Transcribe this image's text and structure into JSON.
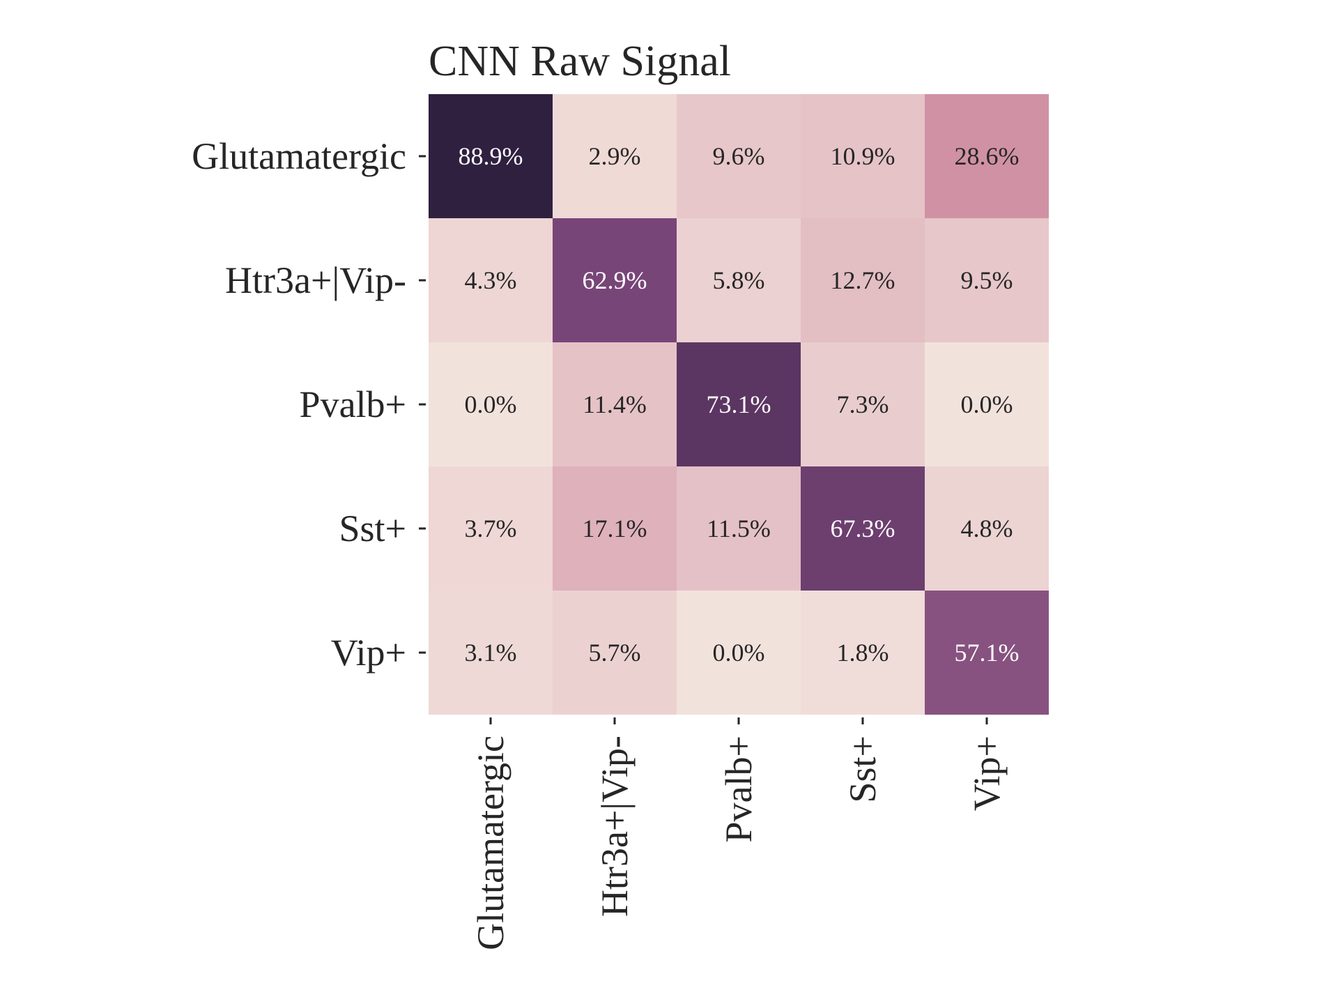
{
  "chart_data": {
    "type": "heatmap",
    "title": "CNN Raw Signal",
    "xlabel": "",
    "ylabel": "",
    "rows": [
      "Glutamatergic",
      "Htr3a+|Vip-",
      "Pvalb+",
      "Sst+",
      "Vip+"
    ],
    "cols": [
      "Glutamatergic",
      "Htr3a+|Vip-",
      "Pvalb+",
      "Sst+",
      "Vip+"
    ],
    "values": [
      [
        88.9,
        2.9,
        9.6,
        10.9,
        28.6
      ],
      [
        4.3,
        62.9,
        5.8,
        12.7,
        9.5
      ],
      [
        0.0,
        11.4,
        73.1,
        7.3,
        0.0
      ],
      [
        3.7,
        17.1,
        11.5,
        67.3,
        4.8
      ],
      [
        3.1,
        5.7,
        0.0,
        1.8,
        57.1
      ]
    ],
    "labels": [
      [
        "88.9%",
        "2.9%",
        "9.6%",
        "10.9%",
        "28.6%"
      ],
      [
        "4.3%",
        "62.9%",
        "5.8%",
        "12.7%",
        "9.5%"
      ],
      [
        "0.0%",
        "11.4%",
        "73.1%",
        "7.3%",
        "0.0%"
      ],
      [
        "3.7%",
        "17.1%",
        "11.5%",
        "67.3%",
        "4.8%"
      ],
      [
        "3.1%",
        "5.7%",
        "0.0%",
        "1.8%",
        "57.1%"
      ]
    ],
    "value_range": [
      0,
      90
    ],
    "colorbar": false,
    "colormap_low": "#f2e2dc",
    "colormap_high": "#2d1e3e",
    "grid": false
  }
}
